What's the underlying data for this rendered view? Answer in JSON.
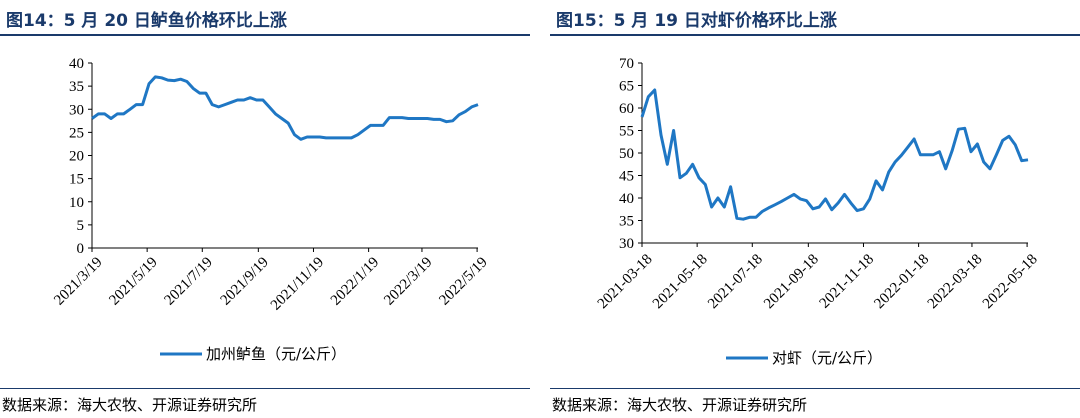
{
  "panels": [
    {
      "title": "图14：5 月 20 日鲈鱼价格环比上涨",
      "source": "数据来源：海大农牧、开源证券研究所"
    },
    {
      "title": "图15：5 月 19 日对虾价格环比上涨",
      "source": "数据来源：海大农牧、开源证券研究所"
    }
  ],
  "chart_data": [
    {
      "type": "line",
      "color": "#1f77c4",
      "ylim": [
        0,
        40
      ],
      "yticks": [
        0,
        5,
        10,
        15,
        20,
        25,
        30,
        35,
        40
      ],
      "grid": false,
      "legend_position": "bottom-center",
      "x_ticks": [
        "2021/3/19",
        "2021/5/19",
        "2021/7/19",
        "2021/9/19",
        "2021/11/19",
        "2022/1/19",
        "2022/3/19",
        "2022/5/19"
      ],
      "series": [
        {
          "name": "加州鲈鱼（元/公斤）",
          "x": [
            "2021-03-19",
            "2021-03-26",
            "2021-04-02",
            "2021-04-09",
            "2021-04-16",
            "2021-04-23",
            "2021-04-30",
            "2021-05-07",
            "2021-05-14",
            "2021-05-21",
            "2021-05-28",
            "2021-06-04",
            "2021-06-11",
            "2021-06-18",
            "2021-06-25",
            "2021-07-02",
            "2021-07-09",
            "2021-07-16",
            "2021-07-23",
            "2021-07-30",
            "2021-08-06",
            "2021-08-13",
            "2021-08-20",
            "2021-08-27",
            "2021-09-03",
            "2021-09-10",
            "2021-09-17",
            "2021-09-24",
            "2021-10-01",
            "2021-10-08",
            "2021-10-15",
            "2021-10-22",
            "2021-10-29",
            "2021-11-05",
            "2021-11-12",
            "2021-11-19",
            "2021-11-26",
            "2021-12-03",
            "2021-12-10",
            "2021-12-17",
            "2021-12-24",
            "2021-12-31",
            "2022-01-07",
            "2022-01-14",
            "2022-01-21",
            "2022-01-28",
            "2022-02-04",
            "2022-02-11",
            "2022-02-18",
            "2022-02-25",
            "2022-03-04",
            "2022-03-11",
            "2022-03-18",
            "2022-03-25",
            "2022-04-01",
            "2022-04-08",
            "2022-04-15",
            "2022-04-22",
            "2022-04-29",
            "2022-05-06",
            "2022-05-13",
            "2022-05-20"
          ],
          "values": [
            28,
            29,
            29,
            28,
            29,
            29,
            30,
            31,
            31,
            35.5,
            37,
            36.8,
            36.3,
            36.2,
            36.5,
            36,
            34.5,
            33.5,
            33.5,
            31,
            30.5,
            31,
            31.5,
            32,
            32,
            32.5,
            32,
            32,
            30.5,
            29,
            28,
            27,
            24.5,
            23.5,
            24,
            24,
            24,
            23.8,
            23.8,
            23.8,
            23.8,
            23.8,
            24.5,
            25.5,
            26.5,
            26.5,
            26.5,
            28.2,
            28.2,
            28.2,
            28,
            28,
            28,
            28,
            27.8,
            27.8,
            27.3,
            27.5,
            28.8,
            29.5,
            30.5,
            31
          ]
        }
      ]
    },
    {
      "type": "line",
      "color": "#1f77c4",
      "ylim": [
        30,
        70
      ],
      "yticks": [
        30,
        35,
        40,
        45,
        50,
        55,
        60,
        65,
        70
      ],
      "grid": false,
      "legend_position": "bottom-center",
      "x_ticks": [
        "2021-03-18",
        "2021-05-18",
        "2021-07-18",
        "2021-09-18",
        "2021-11-18",
        "2022-01-18",
        "2022-03-18",
        "2022-05-18"
      ],
      "series": [
        {
          "name": "对虾（元/公斤）",
          "x": [
            "2021-03-18",
            "2021-03-25",
            "2021-04-01",
            "2021-04-08",
            "2021-04-15",
            "2021-04-22",
            "2021-04-29",
            "2021-05-06",
            "2021-05-13",
            "2021-05-20",
            "2021-05-27",
            "2021-06-03",
            "2021-06-10",
            "2021-06-17",
            "2021-06-24",
            "2021-07-01",
            "2021-07-08",
            "2021-07-15",
            "2021-07-22",
            "2021-07-29",
            "2021-08-05",
            "2021-08-12",
            "2021-08-19",
            "2021-08-26",
            "2021-09-02",
            "2021-09-09",
            "2021-09-16",
            "2021-09-23",
            "2021-09-30",
            "2021-10-07",
            "2021-10-14",
            "2021-10-21",
            "2021-10-28",
            "2021-11-04",
            "2021-11-11",
            "2021-11-18",
            "2021-11-25",
            "2021-12-02",
            "2021-12-09",
            "2021-12-16",
            "2021-12-23",
            "2021-12-30",
            "2022-01-06",
            "2022-01-13",
            "2022-01-20",
            "2022-01-27",
            "2022-02-03",
            "2022-02-10",
            "2022-02-17",
            "2022-02-24",
            "2022-03-03",
            "2022-03-10",
            "2022-03-17",
            "2022-03-24",
            "2022-03-31",
            "2022-04-07",
            "2022-04-14",
            "2022-04-21",
            "2022-04-28",
            "2022-05-05",
            "2022-05-12",
            "2022-05-19"
          ],
          "values": [
            58,
            62.5,
            64,
            54,
            47.5,
            55,
            44.5,
            45.5,
            47.5,
            44.5,
            43,
            38,
            40,
            38,
            42.5,
            35.5,
            35.3,
            35.7,
            35.7,
            37,
            37.8,
            38.5,
            39.2,
            40,
            40.8,
            39.8,
            39.4,
            37.6,
            38,
            39.8,
            37.4,
            38.9,
            40.8,
            38.9,
            37.2,
            37.6,
            39.8,
            43.8,
            41.8,
            45.8,
            48,
            49.5,
            51.3,
            53.1,
            49.6,
            49.6,
            49.6,
            50.3,
            46.5,
            50.5,
            55.3,
            55.5,
            50.3,
            52,
            48,
            46.5,
            49.6,
            52.8,
            53.7,
            51.8,
            48.3,
            48.5
          ]
        }
      ]
    }
  ]
}
